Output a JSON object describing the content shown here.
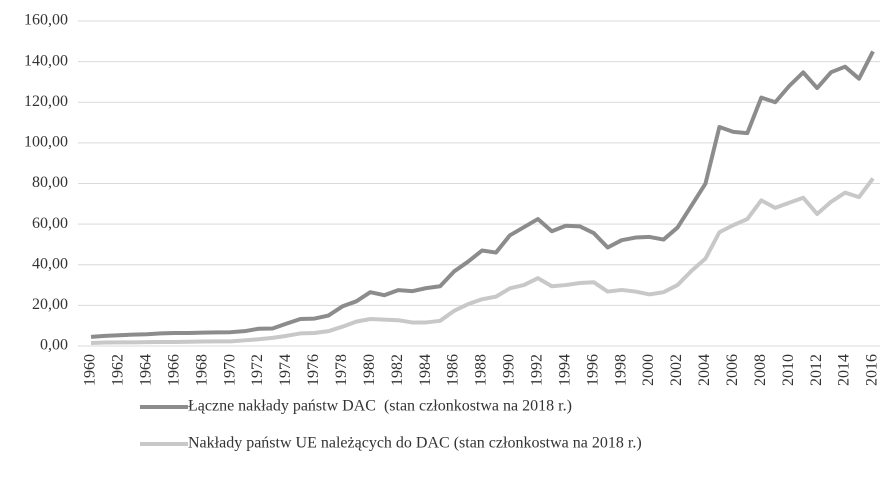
{
  "chart_data": {
    "type": "line",
    "categories": [
      "1960",
      null,
      "1962",
      null,
      "1964",
      null,
      "1966",
      null,
      "1968",
      null,
      "1970",
      null,
      "1972",
      null,
      "1974",
      null,
      "1976",
      null,
      "1978",
      null,
      "1980",
      null,
      "1982",
      null,
      "1984",
      null,
      "1986",
      null,
      "1988",
      null,
      "1990",
      null,
      "1992",
      null,
      "1994",
      null,
      "1996",
      null,
      "1998",
      null,
      "2000",
      null,
      "2002",
      null,
      "2004",
      null,
      "2006",
      null,
      "2008",
      null,
      "2010",
      null,
      "2012",
      null,
      "2014",
      null,
      "2016"
    ],
    "series": [
      {
        "name": "Łączne nakłady państw DAC  (stan członkostwa na 2018 r.)",
        "color": "#8c8c8c",
        "values": [
          4.5,
          5,
          5.3,
          5.6,
          5.8,
          6.2,
          6.4,
          6.4,
          6.6,
          6.7,
          6.8,
          7.3,
          8.5,
          8.6,
          11,
          13.3,
          13.5,
          15,
          19.5,
          22,
          26.5,
          25,
          27.5,
          27,
          28.5,
          29.4,
          36.7,
          41.5,
          47,
          46,
          54.5,
          58.5,
          62.5,
          56.5,
          59.2,
          58.9,
          55.6,
          48.5,
          52.1,
          53.4,
          53.7,
          52.4,
          58.3,
          69.1,
          79.9,
          107.8,
          105.4,
          104.8,
          122.3,
          120,
          128,
          134.7,
          127,
          134.8,
          137.5,
          131.6,
          145
        ]
      },
      {
        "name": "Nakłady państw UE należących do DAC (stan członkostwa na 2018 r.)",
        "color": "#c8c8c8",
        "values": [
          1.5,
          1.7,
          1.8,
          1.8,
          1.9,
          2,
          2,
          2.1,
          2.2,
          2.3,
          2.3,
          2.8,
          3.3,
          4,
          5,
          6.2,
          6.4,
          7.3,
          9.5,
          12,
          13.3,
          13,
          12.7,
          11.6,
          11.6,
          12.4,
          17.3,
          20.6,
          23,
          24.3,
          28.4,
          30,
          33.4,
          29.4,
          30,
          31,
          31.4,
          26.8,
          27.6,
          26.8,
          25.4,
          26.5,
          30,
          37,
          43,
          56,
          59.5,
          62.5,
          71.7,
          68,
          70.5,
          73,
          65,
          71,
          75.5,
          73.3,
          82.5
        ]
      }
    ],
    "ylim": [
      0,
      160
    ],
    "yticks": [
      {
        "value": 0,
        "label": "0,00"
      },
      {
        "value": 20,
        "label": "20,00"
      },
      {
        "value": 40,
        "label": "40,00"
      },
      {
        "value": 60,
        "label": "60,00"
      },
      {
        "value": 80,
        "label": "80,00"
      },
      {
        "value": 100,
        "label": "100,00"
      },
      {
        "value": 120,
        "label": "120,00"
      },
      {
        "value": 140,
        "label": "140,00"
      },
      {
        "value": 160,
        "label": "160,00"
      }
    ],
    "grid": true,
    "legend": "bottom"
  }
}
